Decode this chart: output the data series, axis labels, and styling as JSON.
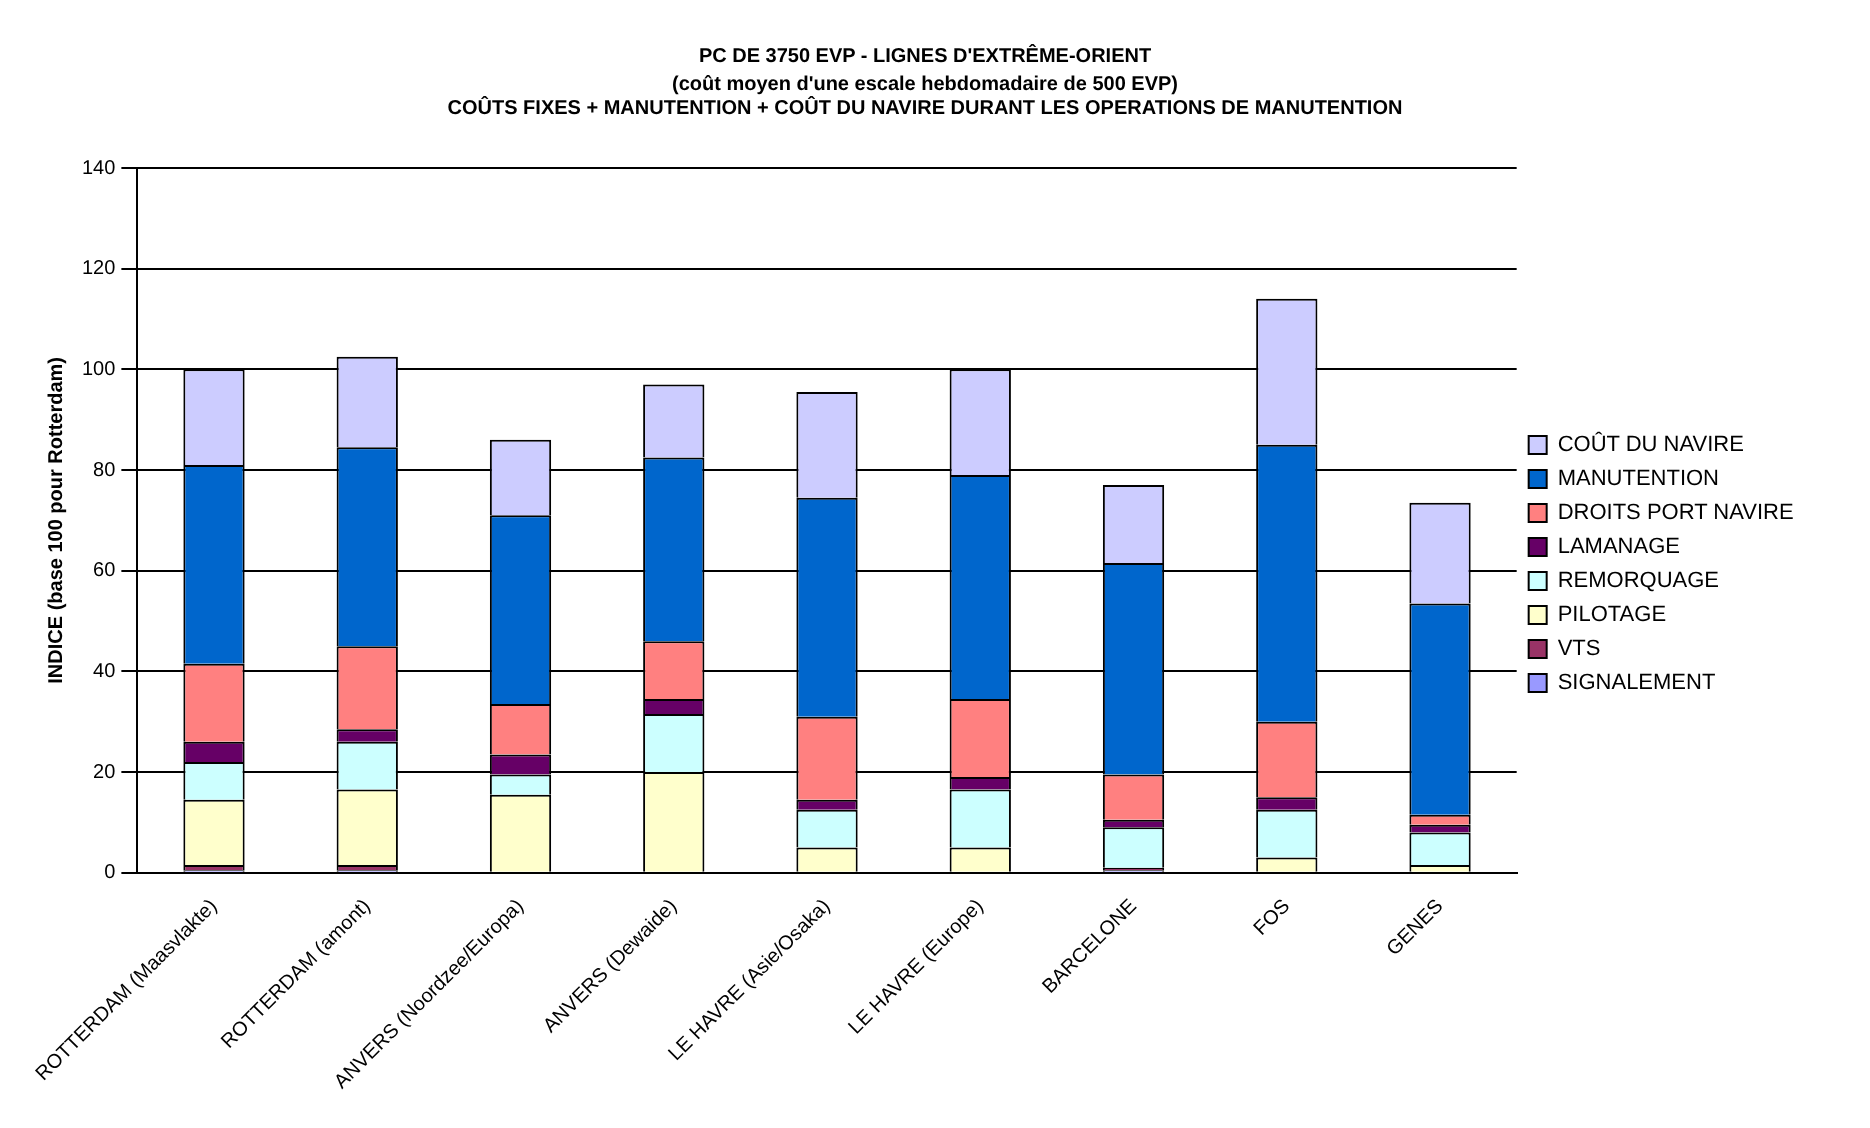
{
  "chart_data": {
    "type": "bar",
    "stacked": true,
    "title": "PC DE 3750 EVP - LIGNES D'EXTRÊME-ORIENT",
    "subtitle": "(coût moyen d'une escale hebdomadaire de 500 EVP)\nCOÛTS FIXES + MANUTENTION + COÛT DU NAVIRE DURANT LES OPERATIONS DE MANUTENTION",
    "ylabel": "INDICE (base 100 pour Rotterdam)",
    "categories": [
      "ROTTERDAM (Maasvlakte)",
      "ROTTERDAM (amont)",
      "ANVERS (Noordzee/Europa)",
      "ANVERS (Dewaide)",
      "LE HAVRE (Asie/Osaka)",
      "LE HAVRE (Europe)",
      "BARCELONE",
      "FOS",
      "GENES"
    ],
    "series": [
      {
        "name": "SIGNALEMENT",
        "color": "#9999ff",
        "values": [
          0.5,
          0.5,
          0,
          0,
          0,
          0,
          0.5,
          0,
          null
        ]
      },
      {
        "name": "VTS",
        "color": "#993366",
        "values": [
          1,
          1,
          0,
          0,
          0,
          0,
          0.5,
          0,
          0
        ]
      },
      {
        "name": "PILOTAGE",
        "color": "#ffffcc",
        "values": [
          13,
          15,
          15.5,
          20,
          5,
          5,
          0,
          3,
          1.5
        ]
      },
      {
        "name": "REMORQUAGE",
        "color": "#ccffff",
        "values": [
          7.5,
          9.5,
          4,
          11.5,
          7.5,
          11.5,
          8,
          9.5,
          6.5
        ]
      },
      {
        "name": "LAMANAGE",
        "color": "#660066",
        "values": [
          4,
          2.5,
          4,
          3,
          2,
          2.5,
          1.5,
          2.5,
          1.5
        ]
      },
      {
        "name": "DROITS PORT NAVIRE",
        "color": "#ff8080",
        "values": [
          15.5,
          16.5,
          10,
          11.5,
          16.5,
          15.5,
          9,
          15,
          2
        ]
      },
      {
        "name": "MANUTENTION",
        "color": "#0066cc",
        "values": [
          39.5,
          39.5,
          37.5,
          36.5,
          43.5,
          44.5,
          42,
          55,
          42
        ]
      },
      {
        "name": "COÛT DU NAVIRE",
        "color": "#ccccff",
        "values": [
          19,
          18,
          15,
          14.5,
          21,
          21,
          15.5,
          29,
          20
        ]
      }
    ],
    "ylim": [
      0,
      140
    ],
    "yticks": [
      0,
      20,
      40,
      60,
      80,
      100,
      120,
      140
    ],
    "grid": "y",
    "legend": "right"
  }
}
